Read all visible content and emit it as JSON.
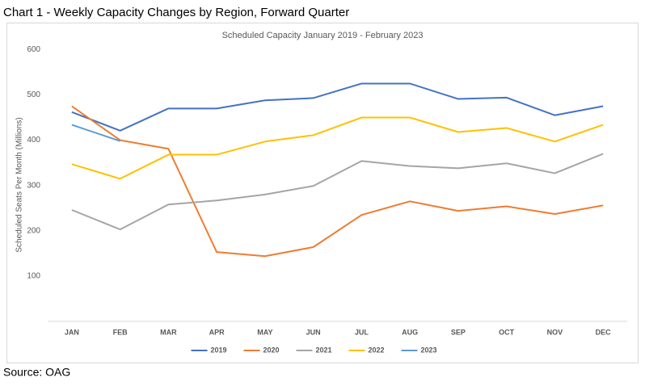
{
  "page_title": "Chart 1 - Weekly Capacity Changes by Region, Forward Quarter",
  "source": "Source: OAG",
  "chart_data": {
    "type": "line",
    "title": "Scheduled Capacity January 2019  - February 2023",
    "y_label": "Scheduled Seats Per Month (Millions)",
    "categories": [
      "JAN",
      "FEB",
      "MAR",
      "APR",
      "MAY",
      "JUN",
      "JUL",
      "AUG",
      "SEP",
      "OCT",
      "NOV",
      "DEC"
    ],
    "series": [
      {
        "name": "2019",
        "color": "#4472c4",
        "values": [
          462,
          421,
          470,
          470,
          488,
          493,
          525,
          525,
          491,
          494,
          455,
          475
        ]
      },
      {
        "name": "2020",
        "color": "#ed7d31",
        "values": [
          475,
          400,
          381,
          153,
          144,
          164,
          235,
          265,
          244,
          254,
          237,
          256
        ]
      },
      {
        "name": "2021",
        "color": "#a5a5a5",
        "values": [
          246,
          203,
          258,
          267,
          280,
          299,
          354,
          343,
          338,
          349,
          327,
          370
        ]
      },
      {
        "name": "2022",
        "color": "#ffc000",
        "values": [
          347,
          315,
          368,
          368,
          397,
          411,
          450,
          450,
          418,
          427,
          397,
          434
        ]
      },
      {
        "name": "2023",
        "color": "#5b9bd5",
        "values": [
          434,
          398,
          null,
          null,
          null,
          null,
          null,
          null,
          null,
          null,
          null,
          null
        ]
      }
    ],
    "ylim": [
      0,
      600
    ],
    "yticks": [
      100,
      200,
      300,
      400,
      500,
      600
    ],
    "grid": false,
    "legend": "bottom"
  }
}
